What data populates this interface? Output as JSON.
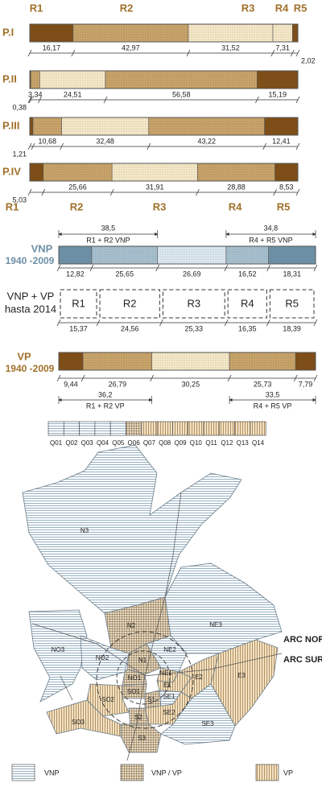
{
  "top_headers": [
    "R1",
    "R2",
    "R3",
    "R4",
    "R5"
  ],
  "profiles": [
    {
      "label": "P.I",
      "segments": [
        {
          "value": 16.17,
          "label": "16,17",
          "fill": "dark"
        },
        {
          "value": 42.97,
          "label": "42,97",
          "fill": "tan"
        },
        {
          "value": 31.52,
          "label": "31,52",
          "fill": "light"
        },
        {
          "value": 7.31,
          "label": "7,31",
          "fill": "light"
        },
        {
          "value": 2.02,
          "label": "2,02",
          "fill": "dark"
        }
      ]
    },
    {
      "label": "P.II",
      "segments": [
        {
          "value": 0.38,
          "label": "0,38",
          "fill": "dark"
        },
        {
          "value": 3.34,
          "label": "3,34",
          "fill": "tan"
        },
        {
          "value": 24.51,
          "label": "24,51",
          "fill": "light"
        },
        {
          "value": 56.58,
          "label": "56,58",
          "fill": "tan"
        },
        {
          "value": 15.19,
          "label": "15,19",
          "fill": "dark"
        }
      ]
    },
    {
      "label": "P.III",
      "segments": [
        {
          "value": 1.21,
          "label": "1,21",
          "fill": "dark"
        },
        {
          "value": 10.68,
          "label": "10,68",
          "fill": "tan"
        },
        {
          "value": 32.48,
          "label": "32,48",
          "fill": "light"
        },
        {
          "value": 43.22,
          "label": "43,22",
          "fill": "tan"
        },
        {
          "value": 12.41,
          "label": "12,41",
          "fill": "dark"
        }
      ]
    },
    {
      "label": "P.IV",
      "segments": [
        {
          "value": 5.03,
          "label": "5,03",
          "fill": "dark"
        },
        {
          "value": 25.66,
          "label": "25,66",
          "fill": "tan"
        },
        {
          "value": 31.91,
          "label": "31,91",
          "fill": "light"
        },
        {
          "value": 28.88,
          "label": "28,88",
          "fill": "tan"
        },
        {
          "value": 8.53,
          "label": "8,53",
          "fill": "dark"
        }
      ]
    }
  ],
  "zone_headers": [
    "R1",
    "R2",
    "R3",
    "R4",
    "R5"
  ],
  "vnp": {
    "line1": "VNP",
    "line2": "1940 -2009",
    "left_total": {
      "value": 38.5,
      "label": "38,5"
    },
    "left_caption": "R1 + R2 VNP",
    "right_total": {
      "value": 34.8,
      "label": "34,8"
    },
    "right_caption": "R4 + R5 VNP",
    "segments": [
      {
        "value": 12.82,
        "label": "12,82",
        "fill": "bdark"
      },
      {
        "value": 25.65,
        "label": "25,65",
        "fill": "bmid"
      },
      {
        "value": 26.69,
        "label": "26,69",
        "fill": "blight"
      },
      {
        "value": 16.52,
        "label": "16,52",
        "fill": "bmid"
      },
      {
        "value": 18.31,
        "label": "18,31",
        "fill": "bdark"
      }
    ]
  },
  "combined": {
    "line1": "VNP + VP",
    "line2": "hasta 2014",
    "segments": [
      {
        "name": "R1",
        "value": 15.37,
        "label": "15,37"
      },
      {
        "name": "R2",
        "value": 24.56,
        "label": "24,56"
      },
      {
        "name": "R3",
        "value": 25.33,
        "label": "25,33"
      },
      {
        "name": "R4",
        "value": 16.35,
        "label": "16,35"
      },
      {
        "name": "R5",
        "value": 18.39,
        "label": "18,39"
      }
    ]
  },
  "vp": {
    "line1": "VP",
    "line2": "1940 -2009",
    "left_total": {
      "value": 36.2,
      "label": "36,2"
    },
    "left_caption": "R1 + R2 VP",
    "right_total": {
      "value": 33.5,
      "label": "33,5"
    },
    "right_caption": "R4 + R5 VP",
    "segments": [
      {
        "value": 9.44,
        "label": "9,44",
        "fill": "dark"
      },
      {
        "value": 26.79,
        "label": "26,79",
        "fill": "tan"
      },
      {
        "value": 30.25,
        "label": "30,25",
        "fill": "light"
      },
      {
        "value": 25.73,
        "label": "25,73",
        "fill": "tan"
      },
      {
        "value": 7.79,
        "label": "7,79",
        "fill": "dark"
      }
    ]
  },
  "quantile_legend": [
    {
      "label": "Q01",
      "pattern": "horizontal"
    },
    {
      "label": "Q02",
      "pattern": "horizontal"
    },
    {
      "label": "Q03",
      "pattern": "horizontal"
    },
    {
      "label": "Q04",
      "pattern": "horizontal"
    },
    {
      "label": "Q05",
      "pattern": "horizontal"
    },
    {
      "label": "Q06",
      "pattern": "cross"
    },
    {
      "label": "Q07",
      "pattern": "vertical"
    },
    {
      "label": "Q08",
      "pattern": "vertical"
    },
    {
      "label": "Q09",
      "pattern": "vertical"
    },
    {
      "label": "Q10",
      "pattern": "vertical"
    },
    {
      "label": "Q11",
      "pattern": "vertical"
    },
    {
      "label": "Q12",
      "pattern": "vertical"
    },
    {
      "label": "Q13",
      "pattern": "vertical"
    },
    {
      "label": "Q14",
      "pattern": "vertical"
    }
  ],
  "map": {
    "regions": [
      {
        "label": "N3",
        "pattern": "horizontal"
      },
      {
        "label": "NE3",
        "pattern": "horizontal"
      },
      {
        "label": "NO3",
        "pattern": "horizontal"
      },
      {
        "label": "N2",
        "pattern": "cross"
      },
      {
        "label": "NE2",
        "pattern": "horizontal"
      },
      {
        "label": "NO2",
        "pattern": "horizontal"
      },
      {
        "label": "N1",
        "pattern": "cross"
      },
      {
        "label": "NE1",
        "pattern": "vertical"
      },
      {
        "label": "NO1",
        "pattern": "cross"
      },
      {
        "label": "E1",
        "pattern": "vertical"
      },
      {
        "label": "E2",
        "pattern": "vertical"
      },
      {
        "label": "E3",
        "pattern": "vertical"
      },
      {
        "label": "SO1",
        "pattern": "cross"
      },
      {
        "label": "S1",
        "pattern": "cross"
      },
      {
        "label": "SE1",
        "pattern": "horizontal"
      },
      {
        "label": "SO2",
        "pattern": "vertical"
      },
      {
        "label": "S2",
        "pattern": "cross"
      },
      {
        "label": "SE2",
        "pattern": "vertical"
      },
      {
        "label": "SO3",
        "pattern": "vertical"
      },
      {
        "label": "S3",
        "pattern": "cross"
      },
      {
        "label": "SE3",
        "pattern": "horizontal"
      }
    ],
    "arc_north": "ARC NOR",
    "arc_south": "ARC SUR"
  },
  "legend": [
    {
      "label": "VNP",
      "pattern": "horizontal"
    },
    {
      "label": "VNP / VP",
      "pattern": "cross"
    },
    {
      "label": "VP",
      "pattern": "vertical"
    }
  ]
}
